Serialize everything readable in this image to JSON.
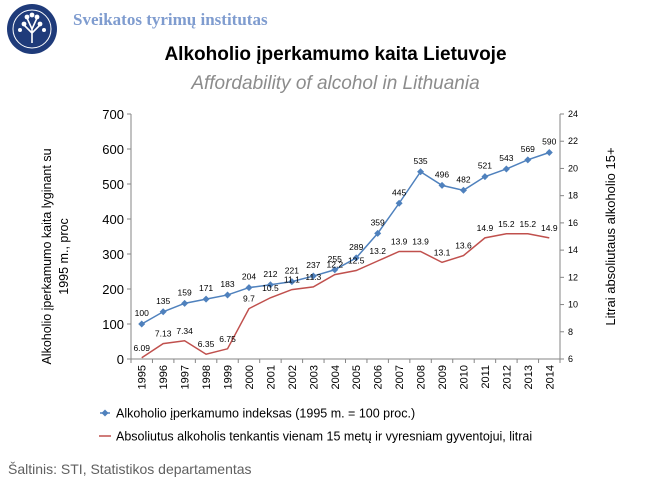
{
  "header": {
    "institute": "Sveikatos tyrimų institutas",
    "title": "Alkoholio įperkamumo kaita Lietuvoje",
    "subtitle": "Affordability of alcohol in Lithuania"
  },
  "source": "Šaltinis: STI, Statistikos departamentas",
  "colors": {
    "index_series": "#4f81bd",
    "alcohol_series": "#c0504d",
    "institute_text": "#7f9ccf"
  },
  "chart_data": {
    "type": "line",
    "x": [
      "1995",
      "1996",
      "1997",
      "1998",
      "1999",
      "2000",
      "2001",
      "2002",
      "2003",
      "2004",
      "2005",
      "2006",
      "2007",
      "2008",
      "2009",
      "2010",
      "2011",
      "2012",
      "2013",
      "2014"
    ],
    "ylabel": "Alkoholio įperkamumo kaita lyginant su 1995 m., proc",
    "y2label": "Litrai absoliutaus alkoholio 15+",
    "ylim": [
      0,
      700
    ],
    "y2lim": [
      6,
      24
    ],
    "yticks": [
      0,
      100,
      200,
      300,
      400,
      500,
      600,
      700
    ],
    "y2ticks": [
      6,
      8,
      10,
      12,
      14,
      16,
      18,
      20,
      22,
      24
    ],
    "grid": false,
    "legend_position": "bottom",
    "series": [
      {
        "name": "Alkoholio įperkamumo indeksas (1995 m. = 100 proc.)",
        "axis": "left",
        "marker": "diamond",
        "values": [
          100,
          135,
          159,
          171,
          183,
          204,
          212,
          221,
          237,
          255,
          289,
          359,
          445,
          535,
          496,
          482,
          521,
          543,
          569,
          590
        ],
        "labels": [
          "100",
          "135",
          "159",
          "171",
          "183",
          "204",
          "212",
          "221",
          "237",
          "255",
          "289",
          "359",
          "445",
          "535",
          "496",
          "482",
          "521",
          "543",
          "569",
          "590"
        ]
      },
      {
        "name": "Absoliutus alkoholis tenkantis vienam 15 metų ir vyresniam gyventojui, litrai",
        "axis": "right",
        "values": [
          6.09,
          7.13,
          7.34,
          6.35,
          6.75,
          9.7,
          10.5,
          11.1,
          11.3,
          12.2,
          12.5,
          13.2,
          13.9,
          13.9,
          13.1,
          13.6,
          14.9,
          15.2,
          15.2,
          14.9
        ],
        "labels": [
          "6.09",
          "7.13",
          "7.34",
          "6.35",
          "6.75",
          "9.7",
          "10.5",
          "11.1",
          "11.3",
          "12.2",
          "12.5",
          "13.2",
          "13.9",
          "13.9",
          "13.1",
          "13.6",
          "14.9",
          "15.2",
          "15.2",
          "14.9"
        ]
      }
    ]
  }
}
